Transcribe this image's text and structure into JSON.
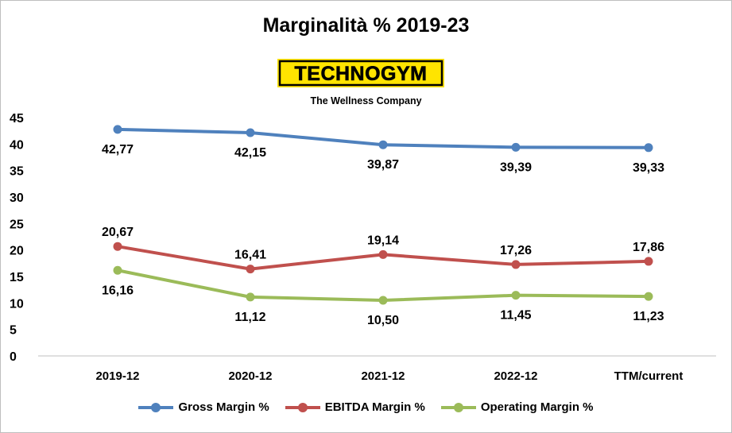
{
  "chart_data": {
    "type": "line",
    "title": "Marginalità % 2019-23",
    "logo": {
      "text": "TECHNOGYM",
      "tagline": "The Wellness Company",
      "icon": "technogym-logo"
    },
    "categories": [
      "2019-12",
      "2020-12",
      "2021-12",
      "2022-12",
      "TTM/current"
    ],
    "ylim": [
      0,
      45
    ],
    "yticks": [
      0,
      5,
      10,
      15,
      20,
      25,
      30,
      35,
      40,
      45
    ],
    "grid": false,
    "legend_position": "bottom",
    "series": [
      {
        "name": "Gross Margin %",
        "color": "#4f81bd",
        "values": [
          42.77,
          42.15,
          39.87,
          39.39,
          39.33
        ],
        "labels": [
          "42,77",
          "42,15",
          "39,87",
          "39,39",
          "39,33"
        ],
        "label_position": "below"
      },
      {
        "name": "EBITDA Margin %",
        "color": "#c0504d",
        "values": [
          20.67,
          16.41,
          19.14,
          17.26,
          17.86
        ],
        "labels": [
          "20,67",
          "16,41",
          "19,14",
          "17,26",
          "17,86"
        ],
        "label_position": "above"
      },
      {
        "name": "Operating Margin %",
        "color": "#9bbb59",
        "values": [
          16.16,
          11.12,
          10.5,
          11.45,
          11.23
        ],
        "labels": [
          "16,16",
          "11,12",
          "10,50",
          "11,45",
          "11,23"
        ],
        "label_position": "below"
      }
    ]
  }
}
